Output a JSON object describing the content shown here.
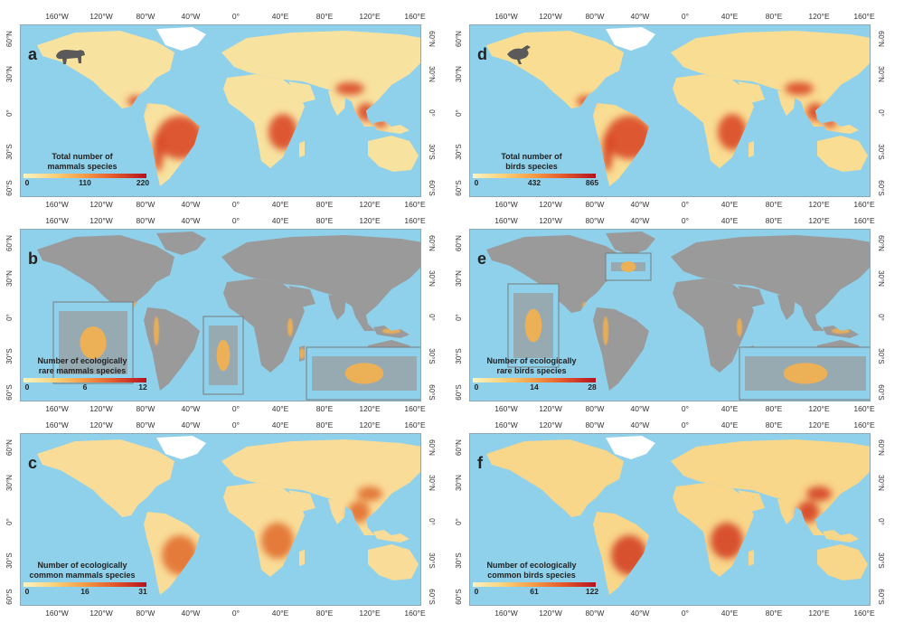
{
  "axes": {
    "longitude_labels": [
      "160°W",
      "120°W",
      "80°W",
      "40°W",
      "0°",
      "40°E",
      "80°E",
      "120°E",
      "160°E"
    ],
    "latitude_labels": [
      "60°N",
      "30°N",
      "0°",
      "30°S",
      "60°S"
    ]
  },
  "colors": {
    "ocean": "#8fd0ea",
    "no_data_land": "#9a9a9a",
    "scale_low": "#fbf3c2",
    "scale_mid": "#f59a45",
    "scale_high": "#b51220"
  },
  "panels": [
    {
      "letter": "a",
      "legend_title_line1": "Total number of",
      "legend_title_line2": "mammals species",
      "tick_min": "0",
      "tick_mid": "110",
      "tick_max": "220",
      "icon": "bear-icon",
      "base_fill": "#f8e2a0",
      "hotspot_fill": "#d8401f"
    },
    {
      "letter": "d",
      "legend_title_line1": "Total number of",
      "legend_title_line2": "birds species",
      "tick_min": "0",
      "tick_mid": "432",
      "tick_max": "865",
      "icon": "bird-icon",
      "base_fill": "#f9dd92",
      "hotspot_fill": "#d8401f"
    },
    {
      "letter": "b",
      "legend_title_line1": "Number of ecologically",
      "legend_title_line2": "rare mammals species",
      "tick_min": "0",
      "tick_mid": "6",
      "tick_max": "12",
      "icon": "",
      "base_fill": "#9a9a9a",
      "hotspot_fill": "#f5b04d"
    },
    {
      "letter": "e",
      "legend_title_line1": "Number of ecologically",
      "legend_title_line2": "rare birds species",
      "tick_min": "0",
      "tick_mid": "14",
      "tick_max": "28",
      "icon": "",
      "base_fill": "#9a9a9a",
      "hotspot_fill": "#f5b04d"
    },
    {
      "letter": "c",
      "legend_title_line1": "Number of ecologically",
      "legend_title_line2": "common mammals species",
      "tick_min": "0",
      "tick_mid": "16",
      "tick_max": "31",
      "icon": "",
      "base_fill": "#f9dc98",
      "hotspot_fill": "#e06a2c"
    },
    {
      "letter": "f",
      "legend_title_line1": "Number of ecologically",
      "legend_title_line2": "common birds species",
      "tick_min": "0",
      "tick_mid": "61",
      "tick_max": "122",
      "icon": "",
      "base_fill": "#f8d68a",
      "hotspot_fill": "#d23a1c"
    }
  ]
}
